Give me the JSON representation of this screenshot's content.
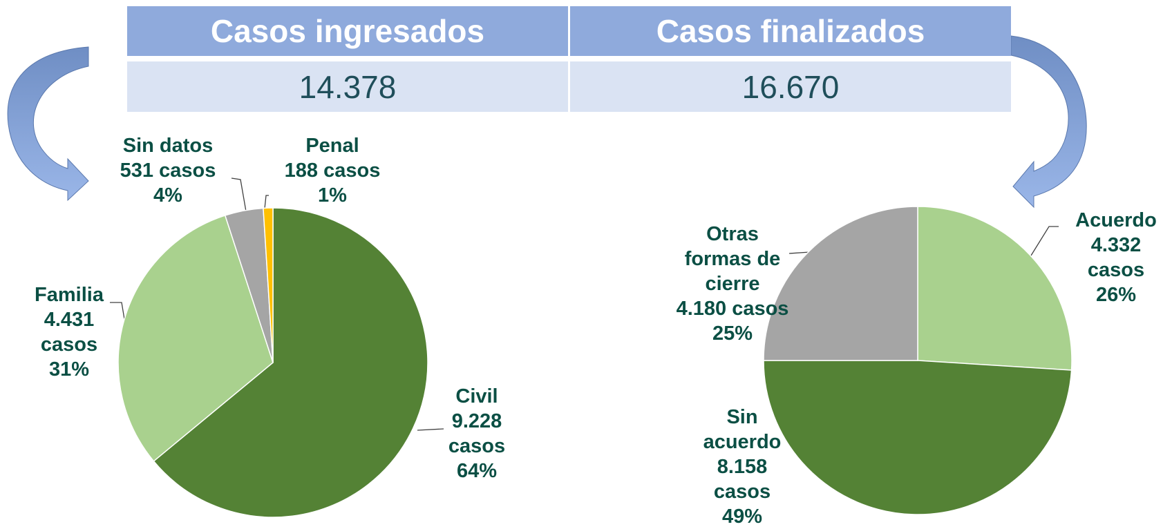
{
  "table": {
    "headers": [
      "Casos ingresados",
      "Casos finalizados"
    ],
    "values": [
      "14.378",
      "16.670"
    ]
  },
  "chart_data": [
    {
      "type": "pie",
      "categories": [
        "Civil",
        "Familia",
        "Sin datos",
        "Penal"
      ],
      "values": [
        64,
        31,
        4,
        1
      ],
      "value_labels": [
        "64%",
        "31%",
        "4%",
        "1%"
      ],
      "cases": [
        "9.228 casos",
        "4.431 casos",
        "531 casos",
        "188 casos"
      ],
      "colors": [
        "#548235",
        "#a9d18e",
        "#a5a5a5",
        "#ffc000"
      ]
    },
    {
      "type": "pie",
      "categories": [
        "Acuerdo",
        "Sin acuerdo",
        "Otras formas de cierre"
      ],
      "values": [
        26,
        49,
        25
      ],
      "value_labels": [
        "26%",
        "49%",
        "25%"
      ],
      "cases": [
        "4.332 casos",
        "8.158 casos",
        "4.180 casos"
      ],
      "colors": [
        "#a9d18e",
        "#548235",
        "#a5a5a5"
      ]
    }
  ]
}
